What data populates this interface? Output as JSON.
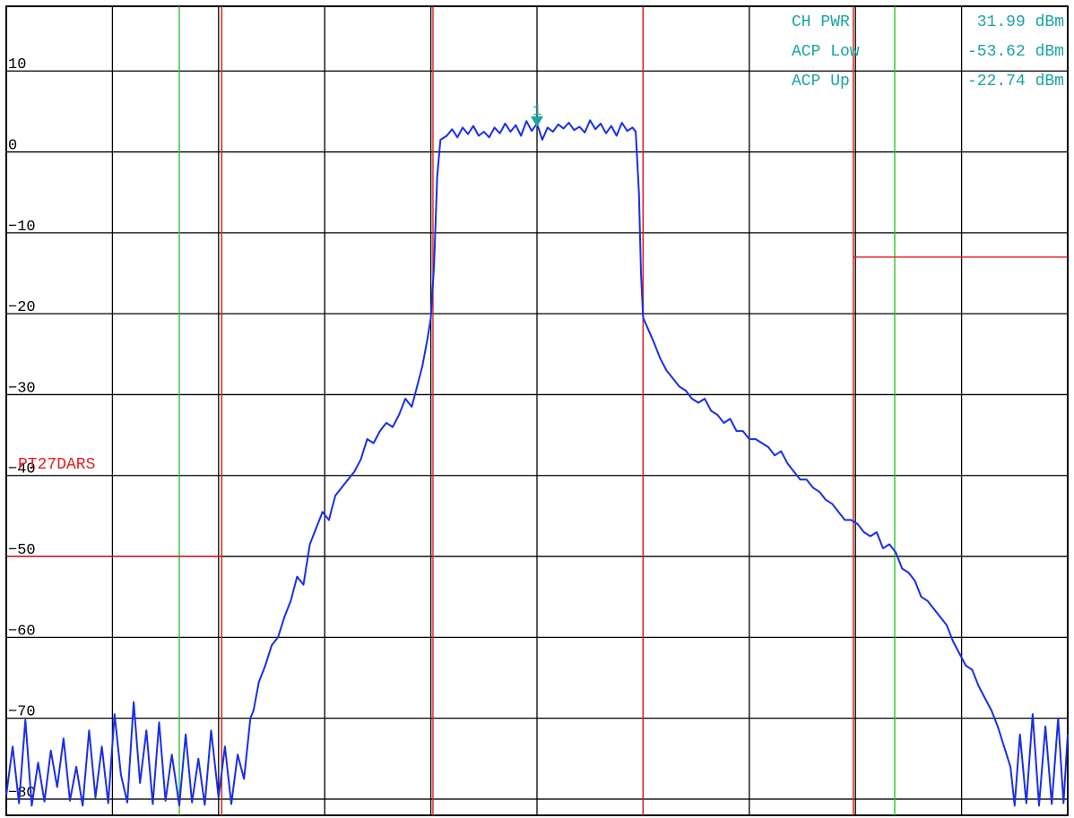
{
  "chart_data": {
    "type": "line",
    "title": "",
    "xlabel": "",
    "ylabel": "",
    "ylim": [
      -82,
      18
    ],
    "xlim": [
      0,
      100
    ],
    "grid": true,
    "y_ticks": [
      10,
      0,
      -10,
      -20,
      -30,
      -40,
      -50,
      -60,
      -70,
      -80
    ],
    "y_tick_labels": [
      "10",
      "0",
      "−10",
      "−20",
      "−30",
      "−40",
      "−50",
      "−60",
      "−70",
      "−80"
    ],
    "x_gridlines": [
      0,
      10,
      20,
      30,
      40,
      50,
      60,
      70,
      80,
      90,
      100
    ],
    "readouts": [
      {
        "name": "CH PWR",
        "value": "31.99 dBm"
      },
      {
        "name": "ACP Low",
        "value": "-53.62 dBm"
      },
      {
        "name": "ACP Up",
        "value": "-22.74 dBm"
      }
    ],
    "limit_line_label": "PT27DARS",
    "limit_line_lower": {
      "x_end": 20.3,
      "y": -50
    },
    "limit_line_upper": {
      "x_start": 79.8,
      "y": -13
    },
    "channel_bounds_red": [
      20.3,
      40.2,
      60.0,
      79.8
    ],
    "adjacent_bounds_green": [
      16.3,
      20.3,
      79.8,
      83.7
    ],
    "marker": {
      "label": "1",
      "x": 50.0,
      "y": 3.5
    },
    "colors": {
      "trace": "#1a2ee8",
      "grid": "#000000",
      "limit": "#e02020",
      "green": "#2ec42e",
      "readout": "#1aa3a3"
    },
    "series": [
      {
        "values": [
          [
            0.0,
            -79.5
          ],
          [
            0.6,
            -73.5
          ],
          [
            1.2,
            -80.5
          ],
          [
            1.8,
            -70.2
          ],
          [
            2.4,
            -80.8
          ],
          [
            3.0,
            -75.5
          ],
          [
            3.6,
            -80.3
          ],
          [
            4.2,
            -74.0
          ],
          [
            4.8,
            -78.5
          ],
          [
            5.4,
            -72.5
          ],
          [
            6.0,
            -80.2
          ],
          [
            6.6,
            -76.0
          ],
          [
            7.2,
            -80.8
          ],
          [
            7.8,
            -71.5
          ],
          [
            8.4,
            -79.8
          ],
          [
            9.0,
            -73.5
          ],
          [
            9.6,
            -80.5
          ],
          [
            10.2,
            -69.5
          ],
          [
            10.8,
            -77.0
          ],
          [
            11.4,
            -80.4
          ],
          [
            12.0,
            -68.0
          ],
          [
            12.6,
            -78.0
          ],
          [
            13.2,
            -71.5
          ],
          [
            13.8,
            -80.6
          ],
          [
            14.4,
            -70.5
          ],
          [
            15.0,
            -80.2
          ],
          [
            15.6,
            -74.5
          ],
          [
            16.3,
            -80.8
          ],
          [
            16.9,
            -72.0
          ],
          [
            17.5,
            -80.4
          ],
          [
            18.1,
            -75.0
          ],
          [
            18.7,
            -80.7
          ],
          [
            19.3,
            -71.5
          ],
          [
            20.0,
            -79.8
          ],
          [
            20.6,
            -73.5
          ],
          [
            21.2,
            -80.6
          ],
          [
            21.8,
            -74.5
          ],
          [
            22.4,
            -77.5
          ],
          [
            23.0,
            -70.0
          ],
          [
            23.3,
            -69.0
          ],
          [
            23.8,
            -65.5
          ],
          [
            24.4,
            -63.5
          ],
          [
            25.0,
            -61.0
          ],
          [
            25.6,
            -60.0
          ],
          [
            26.2,
            -57.5
          ],
          [
            26.8,
            -55.5
          ],
          [
            27.4,
            -52.5
          ],
          [
            28.0,
            -53.5
          ],
          [
            28.6,
            -48.5
          ],
          [
            29.2,
            -46.5
          ],
          [
            29.8,
            -44.5
          ],
          [
            30.4,
            -45.5
          ],
          [
            31.0,
            -42.5
          ],
          [
            31.6,
            -41.5
          ],
          [
            32.2,
            -40.5
          ],
          [
            32.8,
            -39.5
          ],
          [
            33.4,
            -38.0
          ],
          [
            34.0,
            -35.5
          ],
          [
            34.6,
            -36.0
          ],
          [
            35.2,
            -34.5
          ],
          [
            35.8,
            -33.5
          ],
          [
            36.4,
            -34.0
          ],
          [
            37.0,
            -32.5
          ],
          [
            37.6,
            -30.5
          ],
          [
            38.2,
            -31.5
          ],
          [
            38.8,
            -28.5
          ],
          [
            39.2,
            -26.5
          ],
          [
            39.7,
            -23.0
          ],
          [
            40.0,
            -20.5
          ],
          [
            40.3,
            -14.0
          ],
          [
            40.6,
            -3.0
          ],
          [
            40.9,
            1.5
          ],
          [
            41.5,
            2.0
          ],
          [
            42.0,
            2.8
          ],
          [
            42.5,
            1.8
          ],
          [
            43.0,
            3.0
          ],
          [
            43.5,
            2.2
          ],
          [
            44.0,
            3.2
          ],
          [
            44.5,
            2.0
          ],
          [
            45.0,
            2.5
          ],
          [
            45.5,
            1.8
          ],
          [
            46.0,
            3.0
          ],
          [
            46.5,
            2.3
          ],
          [
            47.0,
            3.5
          ],
          [
            47.5,
            2.5
          ],
          [
            48.0,
            3.3
          ],
          [
            48.5,
            2.0
          ],
          [
            49.0,
            3.8
          ],
          [
            49.5,
            2.6
          ],
          [
            50.0,
            3.5
          ],
          [
            50.5,
            1.5
          ],
          [
            51.0,
            3.0
          ],
          [
            51.5,
            2.5
          ],
          [
            52.0,
            3.4
          ],
          [
            52.5,
            2.9
          ],
          [
            53.0,
            3.6
          ],
          [
            53.5,
            2.7
          ],
          [
            54.0,
            3.1
          ],
          [
            54.5,
            2.4
          ],
          [
            55.0,
            3.9
          ],
          [
            55.5,
            2.8
          ],
          [
            56.0,
            3.5
          ],
          [
            56.5,
            2.3
          ],
          [
            57.0,
            3.2
          ],
          [
            57.5,
            2.0
          ],
          [
            58.0,
            3.6
          ],
          [
            58.5,
            2.6
          ],
          [
            59.0,
            3.0
          ],
          [
            59.3,
            2.5
          ],
          [
            59.6,
            -5.0
          ],
          [
            59.8,
            -15.0
          ],
          [
            60.0,
            -20.5
          ],
          [
            60.5,
            -22.0
          ],
          [
            61.0,
            -23.5
          ],
          [
            61.6,
            -25.5
          ],
          [
            62.2,
            -27.0
          ],
          [
            62.8,
            -28.0
          ],
          [
            63.4,
            -29.0
          ],
          [
            64.0,
            -29.5
          ],
          [
            64.6,
            -30.5
          ],
          [
            65.2,
            -31.0
          ],
          [
            65.8,
            -30.5
          ],
          [
            66.4,
            -32.0
          ],
          [
            67.0,
            -32.5
          ],
          [
            67.6,
            -33.5
          ],
          [
            68.2,
            -33.0
          ],
          [
            68.8,
            -34.5
          ],
          [
            69.4,
            -34.5
          ],
          [
            70.0,
            -35.5
          ],
          [
            70.6,
            -35.5
          ],
          [
            71.2,
            -36.0
          ],
          [
            71.8,
            -36.5
          ],
          [
            72.4,
            -37.5
          ],
          [
            73.0,
            -37.0
          ],
          [
            73.6,
            -38.5
          ],
          [
            74.2,
            -39.5
          ],
          [
            74.8,
            -40.5
          ],
          [
            75.4,
            -40.5
          ],
          [
            76.0,
            -41.5
          ],
          [
            76.6,
            -42.0
          ],
          [
            77.2,
            -43.0
          ],
          [
            77.8,
            -43.5
          ],
          [
            78.4,
            -44.5
          ],
          [
            79.0,
            -45.5
          ],
          [
            79.6,
            -45.5
          ],
          [
            80.2,
            -46.0
          ],
          [
            80.8,
            -47.0
          ],
          [
            81.4,
            -47.5
          ],
          [
            82.0,
            -47.0
          ],
          [
            82.6,
            -49.0
          ],
          [
            83.2,
            -48.5
          ],
          [
            83.8,
            -49.5
          ],
          [
            84.4,
            -51.5
          ],
          [
            85.0,
            -52.0
          ],
          [
            85.6,
            -53.0
          ],
          [
            86.2,
            -55.0
          ],
          [
            86.8,
            -55.5
          ],
          [
            87.4,
            -56.5
          ],
          [
            88.0,
            -57.5
          ],
          [
            88.6,
            -58.5
          ],
          [
            89.2,
            -60.5
          ],
          [
            89.8,
            -62.0
          ],
          [
            90.4,
            -63.5
          ],
          [
            91.0,
            -64.0
          ],
          [
            91.6,
            -66.0
          ],
          [
            92.2,
            -67.5
          ],
          [
            92.8,
            -69.0
          ],
          [
            93.4,
            -71.0
          ],
          [
            94.0,
            -73.5
          ],
          [
            94.6,
            -76.0
          ],
          [
            95.0,
            -80.8
          ],
          [
            95.5,
            -72.0
          ],
          [
            96.1,
            -80.5
          ],
          [
            96.7,
            -69.5
          ],
          [
            97.3,
            -80.8
          ],
          [
            97.9,
            -71.0
          ],
          [
            98.5,
            -80.6
          ],
          [
            99.1,
            -70.0
          ],
          [
            99.6,
            -80.5
          ],
          [
            100.0,
            -72.0
          ]
        ]
      }
    ]
  }
}
